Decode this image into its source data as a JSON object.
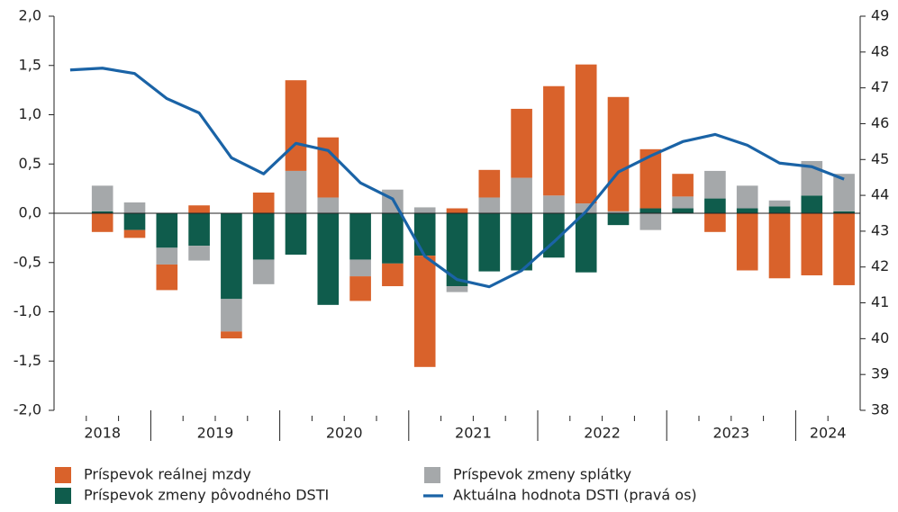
{
  "chart_data": {
    "type": "bar",
    "categories": [
      "2018",
      "2018",
      "2018",
      "2019",
      "2019",
      "2019",
      "2019",
      "2020",
      "2020",
      "2020",
      "2020",
      "2021",
      "2021",
      "2021",
      "2021",
      "2022",
      "2022",
      "2022",
      "2022",
      "2023",
      "2023",
      "2023",
      "2023",
      "2024",
      "2024"
    ],
    "series": [
      {
        "name": "Príspevok reálnej mzdy",
        "color": "#d9622b",
        "type": "bar",
        "values": [
          null,
          -0.19,
          -0.08,
          -0.26,
          0.08,
          -0.07,
          0.21,
          0.92,
          0.61,
          -0.25,
          -0.23,
          -1.13,
          0.05,
          0.28,
          0.7,
          1.11,
          1.41,
          1.16,
          0.6,
          0.23,
          -0.19,
          -0.58,
          -0.66,
          -0.63,
          -0.73
        ]
      },
      {
        "name": "Príspevok zmeny pôvodného DSTI",
        "color": "#0f5c4c",
        "type": "bar",
        "values": [
          null,
          0.02,
          -0.17,
          -0.35,
          -0.33,
          -0.87,
          -0.47,
          -0.42,
          -0.93,
          -0.47,
          -0.51,
          -0.43,
          -0.74,
          -0.59,
          -0.58,
          -0.45,
          -0.6,
          -0.12,
          0.05,
          0.05,
          0.15,
          0.05,
          0.07,
          0.18,
          0.02
        ]
      },
      {
        "name": "Príspevok zmeny splátky",
        "color": "#a5a8aa",
        "type": "bar",
        "values": [
          null,
          0.26,
          0.11,
          -0.17,
          -0.15,
          -0.33,
          -0.25,
          0.43,
          0.16,
          -0.17,
          0.24,
          0.06,
          -0.06,
          0.16,
          0.36,
          0.18,
          0.1,
          0.02,
          -0.17,
          0.12,
          0.28,
          0.23,
          0.06,
          0.35,
          0.38
        ]
      },
      {
        "name": "Aktuálna hodnota DSTI (pravá os)",
        "color": "#1a63a6",
        "type": "line",
        "axis": "y2",
        "values": [
          47.5,
          47.55,
          47.4,
          46.7,
          46.3,
          45.05,
          44.6,
          45.45,
          45.25,
          44.35,
          43.9,
          42.3,
          41.65,
          41.45,
          41.9,
          42.7,
          43.55,
          44.65,
          45.1,
          45.5,
          45.7,
          45.4,
          44.9,
          44.8,
          44.45
        ]
      }
    ],
    "ylim": [
      -2,
      2
    ],
    "yticks": [
      {
        "value": -2,
        "label": "-2,0"
      },
      {
        "value": -1.5,
        "label": "-1,5"
      },
      {
        "value": -1,
        "label": "-1,0"
      },
      {
        "value": -0.5,
        "label": "-0,5"
      },
      {
        "value": 0,
        "label": "0,0"
      },
      {
        "value": 0.5,
        "label": "0,5"
      },
      {
        "value": 1,
        "label": "1,0"
      },
      {
        "value": 1.5,
        "label": "1,5"
      },
      {
        "value": 2,
        "label": "2,0"
      }
    ],
    "y2lim": [
      38,
      49
    ],
    "y2ticks": [
      38,
      39,
      40,
      41,
      42,
      43,
      44,
      45,
      46,
      47,
      48,
      49
    ],
    "grid": false
  }
}
